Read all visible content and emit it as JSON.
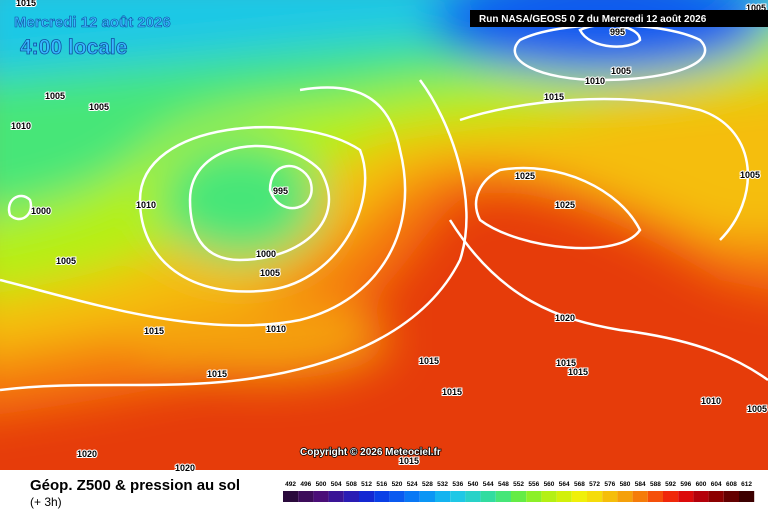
{
  "header": {
    "date": "Mercredi 12 août 2026",
    "time": "4:00 locale",
    "run": "Run NASA/GEOS5 0 Z du Mercredi 12 août 2026"
  },
  "isobar_labels": [
    "1015",
    "1005",
    "1005",
    "1010",
    "1000",
    "1005",
    "1010",
    "995",
    "1000",
    "1005",
    "1015",
    "1010",
    "1015",
    "1020",
    "1020",
    "995",
    "1010",
    "1005",
    "1015",
    "1025",
    "1025",
    "1005",
    "1005",
    "1020",
    "1015",
    "1015",
    "1015",
    "1015",
    "1010",
    "1005",
    "1015"
  ],
  "copyright": "Copyright © 2026 Meteociel.fr",
  "footer": {
    "title": "Géop. Z500 & pression au sol",
    "step": "(+ 3h)"
  },
  "scale": {
    "values": [
      492,
      496,
      500,
      504,
      508,
      512,
      516,
      520,
      524,
      528,
      532,
      536,
      540,
      544,
      548,
      552,
      556,
      560,
      564,
      568,
      572,
      576,
      580,
      584,
      588,
      592,
      596,
      600,
      604,
      608,
      612
    ],
    "colors": [
      "#2a0a3c",
      "#3c0c5a",
      "#4a0e78",
      "#3a1496",
      "#2a1cb4",
      "#1428d2",
      "#0a40e6",
      "#0a5af0",
      "#0a78f5",
      "#0a96f5",
      "#14b4f0",
      "#1ec8e6",
      "#28d2c8",
      "#32dca0",
      "#46e678",
      "#64ec46",
      "#8cf028",
      "#b4f014",
      "#d2f00a",
      "#f0f00a",
      "#f5dc0a",
      "#f5be0a",
      "#f5a00a",
      "#f57c0a",
      "#f5500a",
      "#f0280a",
      "#dc0a0a",
      "#b4000a",
      "#8c0000",
      "#640000",
      "#3c0000"
    ]
  }
}
